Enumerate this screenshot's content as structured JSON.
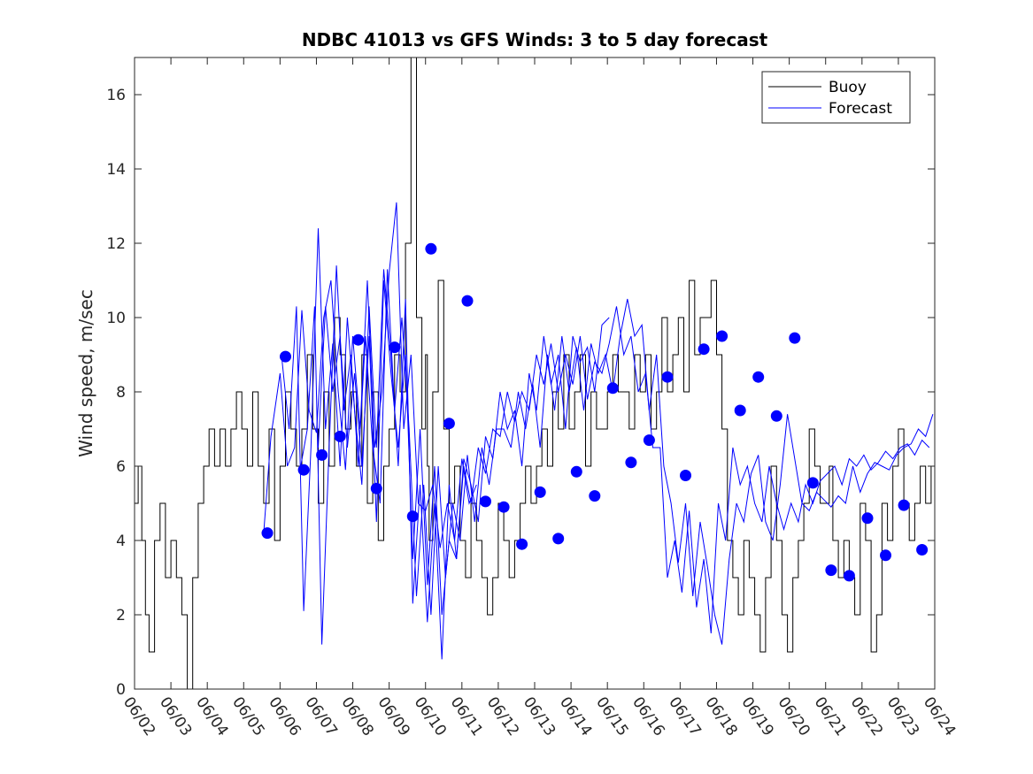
{
  "chart_data": {
    "type": "line",
    "title": "NDBC 41013 vs GFS Winds: 3 to 5 day forecast",
    "xlabel": "",
    "ylabel": "Wind speed, m/sec",
    "xlim": [
      "06/02",
      "06/24"
    ],
    "ylim": [
      0,
      17
    ],
    "x_ticks": [
      "06/02",
      "06/03",
      "06/04",
      "06/05",
      "06/06",
      "06/07",
      "06/08",
      "06/09",
      "06/10",
      "06/11",
      "06/12",
      "06/13",
      "06/14",
      "06/15",
      "06/16",
      "06/17",
      "06/18",
      "06/19",
      "06/20",
      "06/21",
      "06/22",
      "06/23",
      "06/24"
    ],
    "y_ticks": [
      0,
      2,
      4,
      6,
      8,
      10,
      12,
      14,
      16
    ],
    "grid": false,
    "legend": {
      "position": "top-right",
      "entries": [
        "Buoy",
        "Forecast"
      ]
    },
    "colors": {
      "buoy": "#000000",
      "forecast": "#0000ff",
      "markers": "#0000ff"
    },
    "series": [
      {
        "name": "Buoy",
        "style": "step",
        "x": [
          0.0,
          0.1,
          0.2,
          0.3,
          0.4,
          0.55,
          0.7,
          0.85,
          1.0,
          1.15,
          1.3,
          1.45,
          1.6,
          1.75,
          1.9,
          2.05,
          2.2,
          2.35,
          2.5,
          2.65,
          2.8,
          2.95,
          3.1,
          3.25,
          3.4,
          3.55,
          3.7,
          3.85,
          4.0,
          4.15,
          4.3,
          4.45,
          4.6,
          4.75,
          4.9,
          5.05,
          5.2,
          5.35,
          5.5,
          5.65,
          5.8,
          5.95,
          6.1,
          6.25,
          6.4,
          6.55,
          6.7,
          6.85,
          7.0,
          7.15,
          7.3,
          7.45,
          7.6,
          7.75,
          7.9,
          8.0,
          8.05,
          8.1,
          8.2,
          8.35,
          8.5,
          8.65,
          8.8,
          8.95,
          9.1,
          9.25,
          9.4,
          9.55,
          9.7,
          9.85,
          10.0,
          10.15,
          10.3,
          10.45,
          10.6,
          10.75,
          10.9,
          11.05,
          11.2,
          11.35,
          11.5,
          11.65,
          11.8,
          11.95,
          12.1,
          12.25,
          12.4,
          12.55,
          12.7,
          12.85,
          13.0,
          13.15,
          13.3,
          13.45,
          13.6,
          13.75,
          13.9,
          14.05,
          14.2,
          14.35,
          14.5,
          14.65,
          14.8,
          14.95,
          15.1,
          15.25,
          15.4,
          15.55,
          15.7,
          15.85,
          16.0,
          16.15,
          16.3,
          16.45,
          16.6,
          16.75,
          16.9,
          17.05,
          17.2,
          17.35,
          17.5,
          17.65,
          17.8,
          17.95,
          18.1,
          18.25,
          18.4,
          18.55,
          18.7,
          18.85,
          19.0,
          19.1,
          19.2,
          19.35,
          19.5,
          19.65,
          19.8,
          19.95,
          20.1,
          20.25,
          20.4,
          20.55,
          20.7,
          20.85,
          21.0,
          21.15,
          21.3,
          21.45,
          21.6,
          21.75,
          21.9
        ],
        "values": [
          5,
          6,
          4,
          2,
          1,
          4,
          5,
          3,
          4,
          3,
          2,
          0,
          3,
          5,
          6,
          7,
          6,
          7,
          6,
          7,
          8,
          7,
          6,
          8,
          6,
          5,
          7,
          4,
          6,
          8,
          7,
          6,
          7,
          9,
          7,
          5,
          8,
          6,
          10,
          9,
          7,
          8,
          6,
          9,
          5,
          8,
          4,
          6,
          7,
          9,
          8,
          12,
          17,
          10,
          7,
          9,
          6,
          4,
          8,
          11,
          7,
          5,
          6,
          4,
          3,
          5,
          4,
          3,
          2,
          3,
          5,
          4,
          3,
          4,
          5,
          6,
          5,
          6,
          7,
          6,
          8,
          7,
          9,
          7,
          8,
          9,
          6,
          8,
          7,
          7,
          8,
          9,
          8,
          8,
          7,
          9,
          8,
          9,
          7,
          8,
          10,
          8,
          9,
          10,
          8,
          11,
          9,
          10,
          10,
          11,
          9,
          7,
          4,
          3,
          2,
          4,
          3,
          2,
          1,
          3,
          6,
          4,
          2,
          1,
          3,
          4,
          5,
          7,
          6,
          5,
          5,
          6,
          4,
          3,
          4,
          3,
          2,
          5,
          4,
          1,
          2,
          5,
          4,
          6,
          7,
          5,
          4,
          5,
          6,
          5,
          6
        ]
      },
      {
        "name": "Forecast",
        "style": "line",
        "runs": [
          {
            "x": [
              3.55,
              3.75,
              4.0,
              4.2,
              4.4,
              4.6,
              4.8,
              5.0,
              5.2,
              5.4,
              5.6,
              5.8,
              6.0,
              6.2,
              6.4,
              6.6,
              6.8,
              7.0,
              7.2,
              7.4,
              7.6,
              7.8,
              8.0,
              8.2,
              8.4,
              8.6,
              8.8,
              9.0,
              9.2,
              9.4
            ],
            "values": [
              4.2,
              6.8,
              8.5,
              6.0,
              6.5,
              10.2,
              7.5,
              6.9,
              10.0,
              11.0,
              8.0,
              5.9,
              9.5,
              7.0,
              11.0,
              6.5,
              8.0,
              11.2,
              13.1,
              7.0,
              9.0,
              5.0,
              4.8,
              5.5,
              3.8,
              5.0,
              4.0,
              6.2,
              5.0,
              5.5
            ]
          },
          {
            "x": [
              4.05,
              4.25,
              4.45,
              4.65,
              4.85,
              5.05,
              5.25,
              5.45,
              5.65,
              5.85,
              6.05,
              6.25,
              6.45,
              6.65,
              6.85,
              7.05,
              7.25,
              7.45,
              7.65,
              7.85,
              8.05,
              8.25,
              8.45,
              8.65,
              8.85,
              9.05,
              9.25,
              9.45,
              9.65,
              9.85,
              10.05,
              10.25,
              10.45,
              10.65,
              10.85,
              11.05,
              11.25,
              11.45,
              11.65,
              11.85,
              12.05,
              12.25,
              12.45,
              12.65,
              12.85,
              13.05
            ],
            "values": [
              8.9,
              7.0,
              10.3,
              2.1,
              6.5,
              12.4,
              7.0,
              9.3,
              6.0,
              10.0,
              7.5,
              5.5,
              10.3,
              6.5,
              11.3,
              9.0,
              6.0,
              10.5,
              2.3,
              5.5,
              1.8,
              5.0,
              0.8,
              5.5,
              3.5,
              6.2,
              5.5,
              4.5,
              6.8,
              6.2,
              8.0,
              7.0,
              7.5,
              6.0,
              8.5,
              7.5,
              9.5,
              8.2,
              9.0,
              7.0,
              9.5,
              8.8,
              9.2,
              8.0,
              9.8,
              10.0
            ]
          },
          {
            "x": [
              4.55,
              4.75,
              4.95,
              5.15,
              5.35,
              5.55,
              5.75,
              5.95,
              6.15,
              6.35,
              6.55,
              6.75,
              6.95,
              7.15,
              7.35,
              7.55,
              7.75,
              7.95,
              8.15,
              8.35,
              8.55,
              8.75,
              8.95,
              9.15,
              9.35,
              9.55,
              9.75,
              9.95,
              10.15,
              10.35,
              10.55,
              10.75,
              10.95,
              11.15,
              11.35,
              11.55,
              11.75,
              11.95,
              12.15,
              12.35,
              12.55,
              12.75,
              12.95,
              13.15,
              13.35,
              13.55,
              13.75,
              13.95,
              14.15,
              14.35,
              14.55,
              14.75,
              14.95,
              15.15,
              15.35,
              15.55,
              15.75,
              15.95,
              16.15,
              16.35,
              16.55,
              16.75,
              16.95,
              17.15,
              17.35,
              17.55,
              17.75,
              17.95,
              18.15,
              18.35,
              18.55,
              18.75,
              18.95,
              19.15,
              19.35,
              19.55,
              19.75,
              19.95,
              20.15,
              20.35,
              20.55,
              20.75,
              20.95,
              21.15,
              21.35,
              21.55,
              21.75,
              21.95
            ],
            "values": [
              5.9,
              7.0,
              10.3,
              1.2,
              6.5,
              11.4,
              7.5,
              9.0,
              6.0,
              9.5,
              6.5,
              5.0,
              11.3,
              7.5,
              10.0,
              7.0,
              2.5,
              5.5,
              2.0,
              6.0,
              3.0,
              5.0,
              4.0,
              6.3,
              4.5,
              6.5,
              5.5,
              7.0,
              7.0,
              6.5,
              8.0,
              7.0,
              8.2,
              6.5,
              9.0,
              7.5,
              9.5,
              8.0,
              9.2,
              7.5,
              9.3,
              8.5,
              9.0,
              8.0,
              9.5,
              10.5,
              9.5,
              9.8,
              7.5,
              9.0,
              6.0,
              5.0,
              3.4,
              5.0,
              2.5,
              4.5,
              3.3,
              2.0,
              1.2,
              3.5,
              5.0,
              4.5,
              5.8,
              6.3,
              4.5,
              4.0,
              5.5,
              7.4,
              6.2,
              5.0,
              4.8,
              5.3,
              5.1,
              4.9,
              5.2,
              5.0,
              6.0,
              5.3,
              5.8,
              6.1,
              6.0,
              5.9,
              6.3,
              6.5,
              6.6,
              7.0,
              6.8,
              7.4
            ]
          },
          {
            "x": [
              5.05,
              5.25,
              5.45,
              5.65,
              5.85,
              6.05,
              6.25,
              6.45,
              6.65,
              6.85,
              7.05,
              7.25,
              7.45,
              7.65,
              7.85,
              8.05,
              8.25,
              8.45,
              8.65,
              8.85,
              9.05,
              9.25,
              9.45,
              9.65,
              9.85,
              10.05,
              10.25,
              10.45,
              10.65,
              10.85,
              11.05,
              11.25,
              11.45,
              11.65,
              11.85,
              12.05,
              12.25,
              12.45,
              12.65,
              12.85,
              13.05,
              13.25,
              13.45,
              13.65,
              13.85,
              14.05,
              14.25,
              14.45,
              14.65,
              14.85,
              15.05,
              15.25,
              15.45,
              15.65,
              15.85,
              16.05,
              16.25,
              16.45,
              16.65,
              16.85,
              17.05,
              17.25,
              17.45,
              17.65,
              17.85,
              18.05,
              18.25,
              18.45,
              18.65,
              18.85,
              19.05,
              19.25,
              19.45,
              19.65,
              19.85,
              20.05,
              20.25,
              20.45,
              20.65,
              20.85,
              21.05,
              21.25,
              21.45,
              21.65,
              21.85
            ],
            "values": [
              6.5,
              10.3,
              8.0,
              9.5,
              6.5,
              8.5,
              6.0,
              9.5,
              4.5,
              11.0,
              8.5,
              6.5,
              9.0,
              3.5,
              7.0,
              2.8,
              6.0,
              2.0,
              4.0,
              3.5,
              6.0,
              5.0,
              6.5,
              5.8,
              7.0,
              6.8,
              8.0,
              7.2,
              8.0,
              7.5,
              9.0,
              8.2,
              9.3,
              8.0,
              9.0,
              8.2,
              9.5,
              7.8,
              8.8,
              8.5,
              9.3,
              10.3,
              9.0,
              9.5,
              8.0,
              8.5,
              6.5,
              6.5,
              3.0,
              4.0,
              2.6,
              4.8,
              2.2,
              3.5,
              1.5,
              5.0,
              4.0,
              6.5,
              5.5,
              6.0,
              5.0,
              4.5,
              6.0,
              5.0,
              4.3,
              5.0,
              4.5,
              5.5,
              5.0,
              5.6,
              5.8,
              6.0,
              5.5,
              6.2,
              6.0,
              6.3,
              5.9,
              6.1,
              6.4,
              6.2,
              6.5,
              6.6,
              6.3,
              6.7,
              6.5
            ]
          }
        ]
      },
      {
        "name": "",
        "style": "markers",
        "x": [
          3.65,
          4.15,
          4.65,
          5.15,
          5.65,
          6.15,
          6.65,
          7.15,
          7.65,
          8.15,
          8.65,
          9.15,
          9.65,
          10.15,
          10.65,
          11.15,
          11.65,
          12.15,
          12.65,
          13.15,
          13.65,
          14.15,
          14.65,
          15.15,
          15.65,
          16.15,
          16.65,
          17.15,
          17.65,
          18.15,
          18.65,
          19.15,
          19.65,
          20.15,
          20.65,
          21.15,
          21.65
        ],
        "values": [
          4.2,
          8.95,
          5.9,
          6.3,
          6.8,
          9.4,
          5.4,
          9.2,
          4.65,
          11.85,
          7.15,
          10.45,
          5.05,
          4.9,
          3.9,
          5.3,
          4.05,
          5.85,
          5.2,
          8.1,
          6.1,
          6.7,
          8.4,
          5.75,
          9.15,
          9.5,
          7.5,
          8.4,
          7.35,
          9.45,
          5.55,
          3.2,
          3.05,
          4.6,
          3.6,
          4.95,
          3.75
        ]
      }
    ]
  }
}
